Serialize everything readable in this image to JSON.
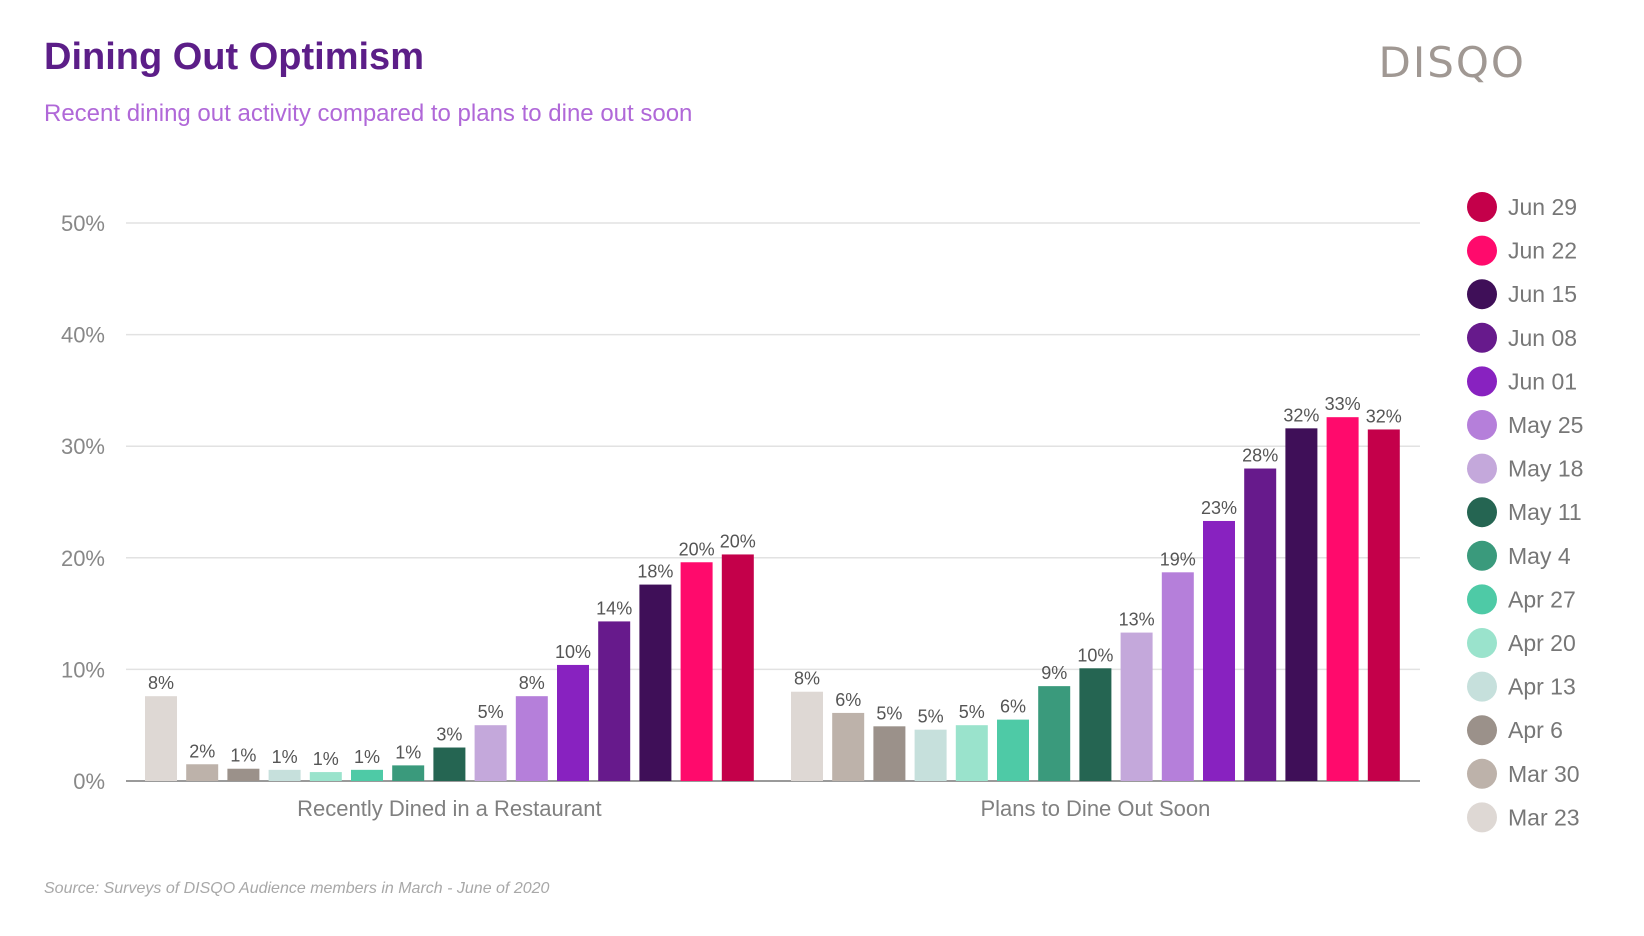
{
  "title": "Dining Out Optimism",
  "subtitle": "Recent dining out activity compared to plans to dine out soon",
  "brand": "DISQO",
  "source": "Source: Surveys of DISQO Audience members in March - June of 2020",
  "chart_data": {
    "type": "bar",
    "title": "Dining Out Optimism",
    "subtitle": "Recent dining out activity compared to plans to dine out soon",
    "xlabel": "",
    "ylabel": "",
    "ylim": [
      0,
      50
    ],
    "yticks": [
      0,
      10,
      20,
      30,
      40,
      50
    ],
    "ytick_labels": [
      "0%",
      "10%",
      "20%",
      "30%",
      "40%",
      "50%"
    ],
    "grid": true,
    "legend_position": "right",
    "categories": [
      "Recently Dined in a Restaurant",
      "Plans to Dine Out Soon"
    ],
    "series": [
      {
        "name": "Mar 23",
        "color": "#ded8d4",
        "values": [
          7.6,
          8.0
        ],
        "labels": [
          "8%",
          "8%"
        ]
      },
      {
        "name": "Mar 30",
        "color": "#bdb2aa",
        "values": [
          1.5,
          6.1
        ],
        "labels": [
          "2%",
          "6%"
        ]
      },
      {
        "name": "Apr 6",
        "color": "#9b918a",
        "values": [
          1.1,
          4.9
        ],
        "labels": [
          "1%",
          "5%"
        ]
      },
      {
        "name": "Apr 13",
        "color": "#c6e0dc",
        "values": [
          1.0,
          4.6
        ],
        "labels": [
          "1%",
          "5%"
        ]
      },
      {
        "name": "Apr 20",
        "color": "#9ae3cc",
        "values": [
          0.8,
          5.0
        ],
        "labels": [
          "1%",
          "5%"
        ]
      },
      {
        "name": "Apr 27",
        "color": "#4ecaa6",
        "values": [
          1.0,
          5.5
        ],
        "labels": [
          "1%",
          "6%"
        ]
      },
      {
        "name": "May 4",
        "color": "#3a9a7c",
        "values": [
          1.4,
          8.5
        ],
        "labels": [
          "1%",
          "9%"
        ]
      },
      {
        "name": "May 11",
        "color": "#256552",
        "values": [
          3.0,
          10.1
        ],
        "labels": [
          "3%",
          "10%"
        ]
      },
      {
        "name": "May 18",
        "color": "#c4a8db",
        "values": [
          5.0,
          13.3
        ],
        "labels": [
          "5%",
          "13%"
        ]
      },
      {
        "name": "May 25",
        "color": "#b57fda",
        "values": [
          7.6,
          18.7
        ],
        "labels": [
          "8%",
          "19%"
        ]
      },
      {
        "name": "Jun 01",
        "color": "#8822c0",
        "values": [
          10.4,
          23.3
        ],
        "labels": [
          "10%",
          "23%"
        ]
      },
      {
        "name": "Jun 08",
        "color": "#671a8c",
        "values": [
          14.3,
          28.0
        ],
        "labels": [
          "14%",
          "28%"
        ]
      },
      {
        "name": "Jun 15",
        "color": "#3f0f58",
        "values": [
          17.6,
          31.6
        ],
        "labels": [
          "18%",
          "32%"
        ]
      },
      {
        "name": "Jun 22",
        "color": "#ff0a6c",
        "values": [
          19.6,
          32.6
        ],
        "labels": [
          "20%",
          "33%"
        ]
      },
      {
        "name": "Jun 29",
        "color": "#c4004a",
        "values": [
          20.3,
          31.5
        ],
        "labels": [
          "20%",
          "32%"
        ]
      }
    ]
  }
}
